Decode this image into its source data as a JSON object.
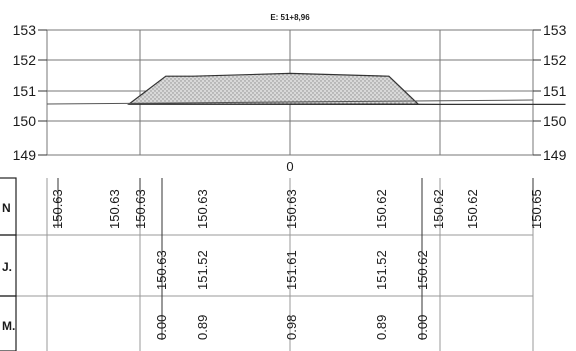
{
  "section": {
    "station_label": "E: 51+8,96",
    "center_offset_label": "0"
  },
  "chart_data": {
    "type": "line",
    "title": "E: 51+8,96",
    "y_ticks": [
      "153",
      "152",
      "151",
      "150",
      "149"
    ],
    "ylim": [
      149,
      153
    ],
    "grid": true,
    "series": [
      {
        "name": "",
        "x": [
          -131.0,
          -78.6,
          -1.0,
          52.4,
          122.1,
          224.0
        ],
        "y": [
          150.63,
          150.63,
          150.63,
          150.63,
          150.62,
          150.62
        ]
      },
      {
        "x": [
          -131.0,
          -101.0,
          -78.6,
          0.0,
          80.4,
          104.5
        ],
        "y": [
          150.63,
          151.52,
          151.52,
          151.61,
          151.52,
          150.62
        ]
      }
    ]
  },
  "table": {
    "row_labels": [
      "N",
      "J.",
      "M."
    ],
    "row_ground": [
      "150.63",
      "150.63",
      "150.63",
      "150.63",
      "150.63",
      "150.62",
      "150.62",
      "150.62",
      "150.65"
    ],
    "row_design": [
      "150.63",
      "151.52",
      "151.61",
      "151.52",
      "150.62"
    ],
    "row_height": [
      "0.00",
      "0.89",
      "0.98",
      "0.89",
      "0.00"
    ]
  },
  "colors": {
    "grid": "#777777",
    "ground_line": "#333333",
    "fill": "#d4d4d4",
    "hatch": "#8a8a8a"
  }
}
